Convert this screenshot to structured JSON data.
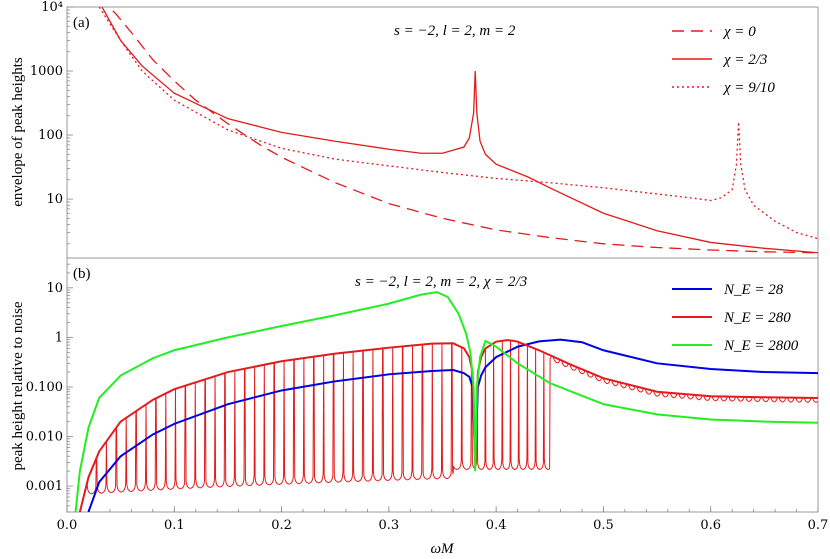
{
  "chart_data": [
    {
      "type": "line",
      "panel_label": "(a)",
      "annotation": "s = −2, l = 2, m = 2",
      "xlabel": "",
      "ylabel": "envelope of peak heights",
      "xlim": [
        0,
        0.7
      ],
      "ylim": [
        1.2,
        10000
      ],
      "yscale": "log",
      "yticks": [
        {
          "value": 10,
          "label": "10"
        },
        {
          "value": 100,
          "label": "100"
        },
        {
          "value": 1000,
          "label": "1000"
        },
        {
          "value": 10000,
          "label": "10⁴"
        }
      ],
      "series": [
        {
          "name": "χ = 0",
          "style": "dashed",
          "color": "#e41a1c",
          "x": [
            0.03,
            0.045,
            0.06,
            0.08,
            0.1,
            0.12,
            0.15,
            0.18,
            0.2,
            0.25,
            0.3,
            0.35,
            0.4,
            0.45,
            0.5,
            0.55,
            0.6,
            0.65,
            0.7
          ],
          "y": [
            14000,
            8000,
            4000,
            1500,
            700,
            350,
            150,
            70,
            45,
            18,
            8.5,
            5,
            3.3,
            2.5,
            2.0,
            1.75,
            1.6,
            1.5,
            1.45
          ]
        },
        {
          "name": "χ = 2/3",
          "style": "solid",
          "color": "#e41a1c",
          "x": [
            0.03,
            0.05,
            0.07,
            0.1,
            0.15,
            0.2,
            0.25,
            0.3,
            0.33,
            0.35,
            0.37,
            0.375,
            0.379,
            0.3805,
            0.382,
            0.385,
            0.39,
            0.4,
            0.43,
            0.45,
            0.5,
            0.55,
            0.6,
            0.65,
            0.7
          ],
          "y": [
            12000,
            3000,
            1200,
            450,
            180,
            110,
            80,
            60,
            52,
            52,
            65,
            90,
            220,
            1000,
            220,
            80,
            50,
            35,
            22,
            15,
            6,
            3.2,
            2.1,
            1.7,
            1.45
          ]
        },
        {
          "name": "χ = 9/10",
          "style": "dotted",
          "color": "#e41a1c",
          "x": [
            0.03,
            0.05,
            0.07,
            0.1,
            0.15,
            0.2,
            0.25,
            0.3,
            0.35,
            0.4,
            0.45,
            0.5,
            0.55,
            0.58,
            0.6,
            0.61,
            0.62,
            0.624,
            0.626,
            0.628,
            0.632,
            0.64,
            0.66,
            0.68,
            0.7
          ],
          "y": [
            10000,
            3000,
            1000,
            350,
            120,
            62,
            42,
            33,
            26,
            21,
            18,
            15,
            12,
            10.5,
            9.5,
            10.5,
            14,
            35,
            160,
            35,
            14,
            8,
            4.5,
            3,
            2.4
          ]
        }
      ],
      "legend_position": "top-right"
    },
    {
      "type": "line",
      "panel_label": "(b)",
      "annotation": "s = −2, l = 2, m = 2, χ = 2/3",
      "xlabel": "ωM",
      "ylabel": "peak height relative to noise",
      "xlim": [
        0,
        0.7
      ],
      "ylim": [
        0.0003,
        40
      ],
      "yscale": "log",
      "xticks": [
        {
          "value": 0,
          "label": "0.0"
        },
        {
          "value": 0.1,
          "label": "0.1"
        },
        {
          "value": 0.2,
          "label": "0.2"
        },
        {
          "value": 0.3,
          "label": "0.3"
        },
        {
          "value": 0.4,
          "label": "0.4"
        },
        {
          "value": 0.5,
          "label": "0.5"
        },
        {
          "value": 0.6,
          "label": "0.6"
        },
        {
          "value": 0.7,
          "label": "0.7"
        }
      ],
      "yticks": [
        {
          "value": 0.001,
          "label": "0.001"
        },
        {
          "value": 0.01,
          "label": "0.010"
        },
        {
          "value": 0.1,
          "label": "0.100"
        },
        {
          "value": 1,
          "label": "1"
        },
        {
          "value": 10,
          "label": "10"
        }
      ],
      "series": [
        {
          "name": "N_E = 28",
          "color": "#0000e6",
          "x": [
            0.02,
            0.03,
            0.05,
            0.08,
            0.1,
            0.15,
            0.2,
            0.25,
            0.3,
            0.34,
            0.36,
            0.37,
            0.375,
            0.378,
            0.3805,
            0.383,
            0.386,
            0.39,
            0.4,
            0.42,
            0.44,
            0.46,
            0.48,
            0.5,
            0.55,
            0.6,
            0.65,
            0.7
          ],
          "y": [
            0.0003,
            0.0012,
            0.004,
            0.011,
            0.018,
            0.045,
            0.085,
            0.13,
            0.18,
            0.21,
            0.22,
            0.19,
            0.16,
            0.1,
            0.003,
            0.1,
            0.17,
            0.25,
            0.4,
            0.65,
            0.83,
            0.9,
            0.8,
            0.55,
            0.3,
            0.23,
            0.2,
            0.19
          ]
        },
        {
          "name": "N_E = 280",
          "color": "#e41a1c",
          "x": [
            0.012,
            0.02,
            0.03,
            0.05,
            0.08,
            0.1,
            0.15,
            0.2,
            0.25,
            0.3,
            0.34,
            0.36,
            0.37,
            0.375,
            0.378,
            0.3805,
            0.383,
            0.386,
            0.39,
            0.4,
            0.41,
            0.415,
            0.42,
            0.44,
            0.47,
            0.5,
            0.55,
            0.6,
            0.65,
            0.7
          ],
          "y": [
            0.0003,
            0.0015,
            0.005,
            0.02,
            0.055,
            0.09,
            0.2,
            0.33,
            0.47,
            0.62,
            0.75,
            0.76,
            0.6,
            0.4,
            0.2,
            0.003,
            0.2,
            0.4,
            0.6,
            0.82,
            0.88,
            0.86,
            0.82,
            0.55,
            0.28,
            0.15,
            0.08,
            0.065,
            0.062,
            0.06
          ]
        },
        {
          "name": "N_E = 2800",
          "color": "#22ee22",
          "x": [
            0.008,
            0.012,
            0.02,
            0.03,
            0.05,
            0.08,
            0.1,
            0.15,
            0.2,
            0.25,
            0.3,
            0.33,
            0.345,
            0.355,
            0.365,
            0.372,
            0.376,
            0.379,
            0.3805,
            0.382,
            0.385,
            0.39,
            0.4,
            0.42,
            0.45,
            0.5,
            0.55,
            0.6,
            0.65,
            0.7
          ],
          "y": [
            0.0003,
            0.002,
            0.015,
            0.06,
            0.17,
            0.38,
            0.55,
            1.0,
            1.7,
            2.8,
            4.8,
            7.3,
            8.2,
            6.5,
            3.0,
            1.2,
            0.5,
            0.1,
            0.002,
            0.1,
            0.4,
            0.85,
            0.65,
            0.3,
            0.12,
            0.045,
            0.028,
            0.022,
            0.02,
            0.019
          ]
        }
      ],
      "legend_position": "top-right"
    }
  ]
}
